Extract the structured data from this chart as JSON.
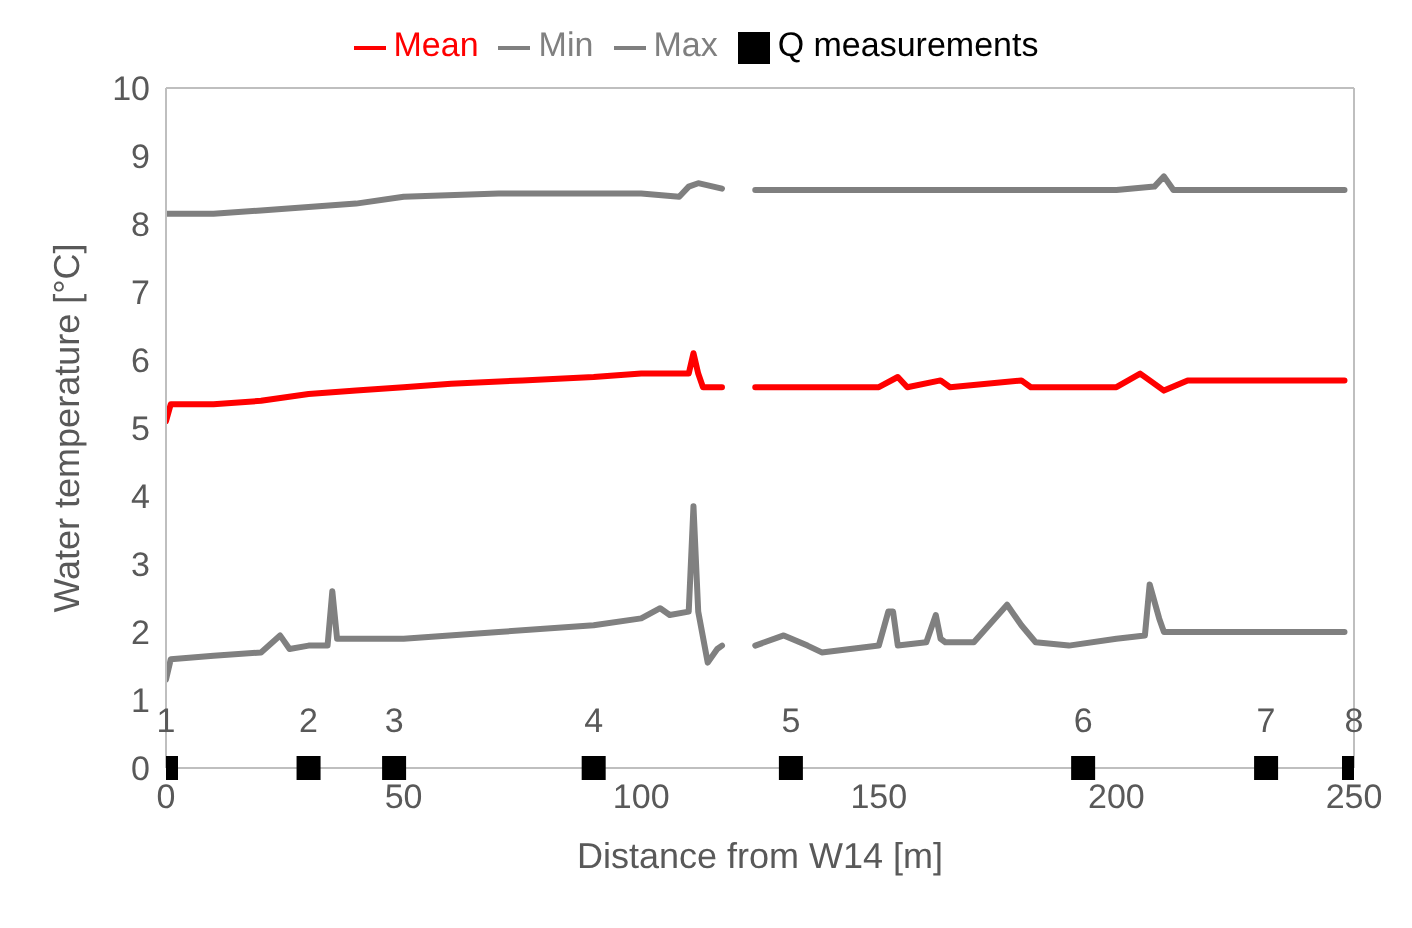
{
  "chart_data": {
    "type": "line",
    "xlabel": "Distance from W14 [m]",
    "ylabel": "Water temperature [°C]",
    "xlim": [
      0,
      250
    ],
    "xticks": [
      0,
      50,
      100,
      150,
      200,
      250
    ],
    "ylim": [
      0,
      10
    ],
    "yticks": [
      0,
      1,
      2,
      3,
      4,
      5,
      6,
      7,
      8,
      9,
      10
    ],
    "grid": false,
    "legend": "top",
    "marker": "none",
    "line_style": "solid",
    "series": [
      {
        "name": "Mean",
        "color": "#ff0000",
        "x": [
          0,
          1,
          10,
          20,
          30,
          40,
          50,
          60,
          75,
          90,
          100,
          108,
          110,
          111,
          112,
          113,
          117,
          120,
          124,
          140,
          150,
          154,
          156,
          163,
          165,
          180,
          182,
          195,
          200,
          205,
          207,
          210,
          215,
          230,
          248
        ],
        "values": [
          5.1,
          5.35,
          5.35,
          5.4,
          5.5,
          5.55,
          5.6,
          5.65,
          5.7,
          5.75,
          5.8,
          5.8,
          5.8,
          6.1,
          5.8,
          5.6,
          5.6,
          null,
          5.6,
          5.6,
          5.6,
          5.75,
          5.6,
          5.7,
          5.6,
          5.7,
          5.6,
          5.6,
          5.6,
          5.8,
          5.7,
          5.55,
          5.7,
          5.7,
          5.7
        ]
      },
      {
        "name": "Min",
        "color": "#808080",
        "x": [
          0,
          1,
          10,
          20,
          24,
          26,
          30,
          34,
          35,
          36,
          50,
          70,
          90,
          100,
          104,
          106,
          110,
          111,
          112,
          114,
          116,
          117,
          120,
          124,
          130,
          135,
          138,
          150,
          152,
          153,
          154,
          160,
          162,
          163,
          164,
          170,
          177,
          180,
          183,
          190,
          200,
          206,
          207,
          209,
          210,
          230,
          248
        ],
        "values": [
          1.3,
          1.6,
          1.65,
          1.7,
          1.95,
          1.75,
          1.8,
          1.8,
          2.6,
          1.9,
          1.9,
          2.0,
          2.1,
          2.2,
          2.35,
          2.25,
          2.3,
          3.85,
          2.3,
          1.55,
          1.75,
          1.8,
          null,
          1.8,
          1.95,
          1.8,
          1.7,
          1.8,
          2.3,
          2.3,
          1.8,
          1.85,
          2.25,
          1.9,
          1.85,
          1.85,
          2.4,
          2.1,
          1.85,
          1.8,
          1.9,
          1.95,
          2.7,
          2.2,
          2.0,
          2.0,
          2.0
        ]
      },
      {
        "name": "Max",
        "color": "#7f7f7f",
        "x": [
          0,
          10,
          20,
          30,
          40,
          50,
          70,
          90,
          100,
          108,
          110,
          112,
          117,
          120,
          124,
          150,
          180,
          200,
          208,
          210,
          212,
          230,
          248
        ],
        "values": [
          8.15,
          8.15,
          8.2,
          8.25,
          8.3,
          8.4,
          8.45,
          8.45,
          8.45,
          8.4,
          8.55,
          8.6,
          8.52,
          null,
          8.5,
          8.5,
          8.5,
          8.5,
          8.55,
          8.7,
          8.5,
          8.5,
          8.5
        ]
      },
      {
        "name": "Q measurements",
        "type": "scatter",
        "color": "#000000",
        "marker": "square",
        "x": [
          0,
          30,
          48,
          90,
          131.5,
          193,
          231.5,
          250
        ],
        "values": [
          0,
          0,
          0,
          0,
          0,
          0,
          0,
          0
        ]
      }
    ],
    "annotations": [
      {
        "text": "1",
        "x": 0,
        "y": 0
      },
      {
        "text": "2",
        "x": 30,
        "y": 0
      },
      {
        "text": "3",
        "x": 48,
        "y": 0
      },
      {
        "text": "4",
        "x": 90,
        "y": 0
      },
      {
        "text": "5",
        "x": 131.5,
        "y": 0
      },
      {
        "text": "6",
        "x": 193,
        "y": 0
      },
      {
        "text": "7",
        "x": 231.5,
        "y": 0
      },
      {
        "text": "8",
        "x": 250,
        "y": 0
      }
    ]
  }
}
